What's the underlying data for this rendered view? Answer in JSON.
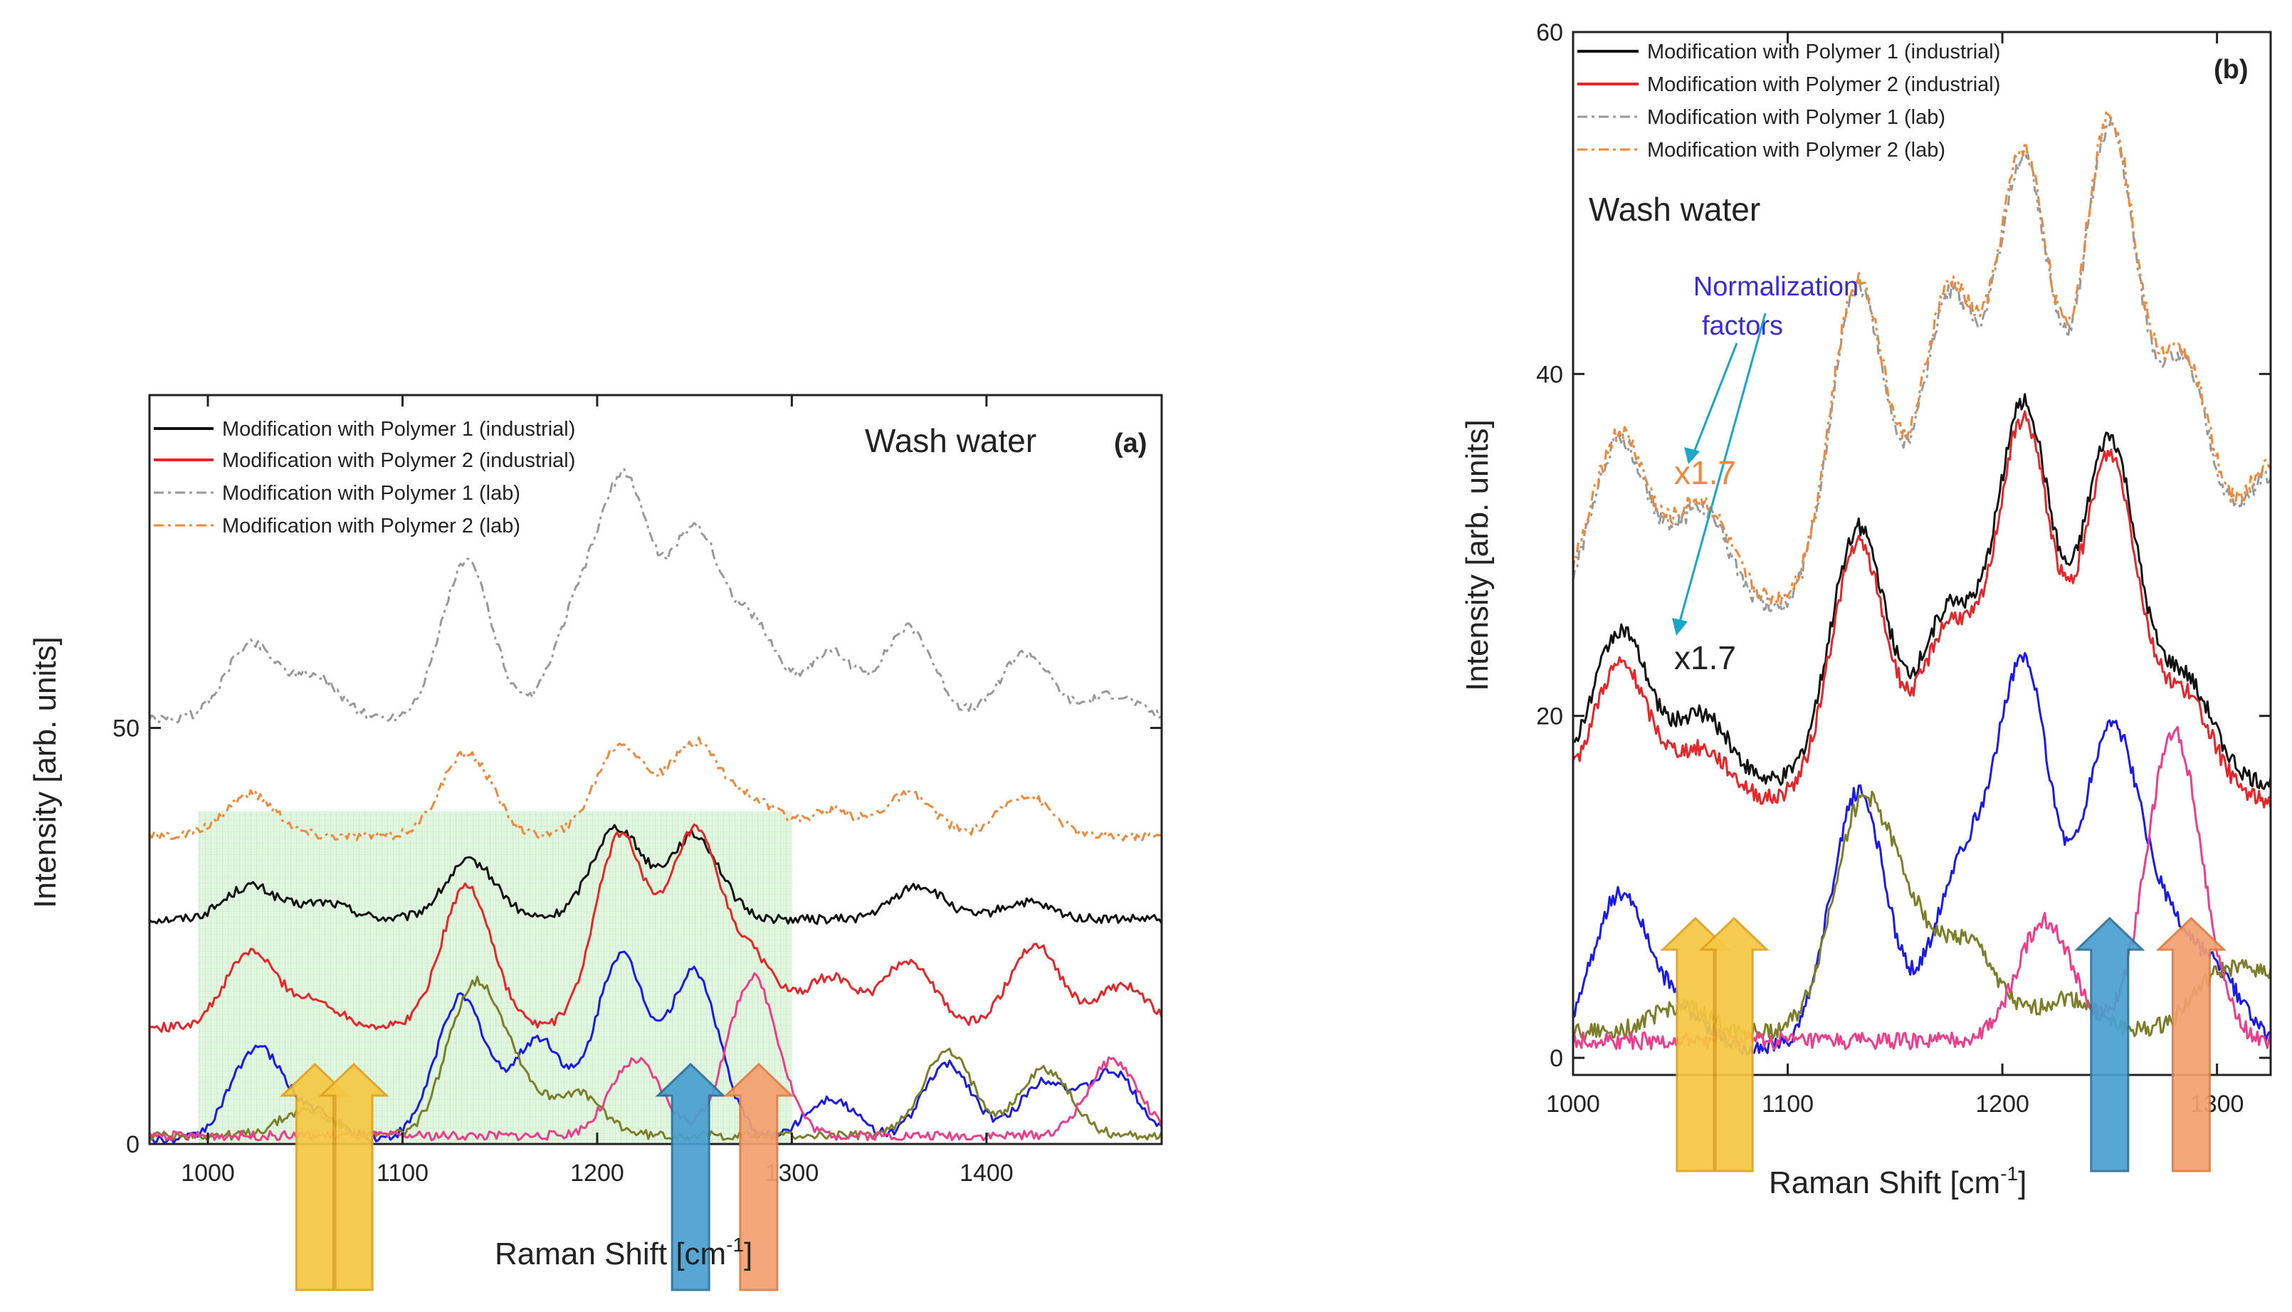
{
  "chart_data": [
    {
      "type": "line",
      "panel_label": "(a)",
      "annotation": "Wash water",
      "xlabel": "Raman Shift [cm",
      "xlabel_sup": "-1",
      "xlabel_close": "]",
      "ylabel": "Intensity [arb. units]",
      "xlim": [
        970,
        1490
      ],
      "ylim": [
        0,
        90
      ],
      "xticks": [
        1000,
        1100,
        1200,
        1300,
        1400
      ],
      "yticks": [
        0,
        50
      ],
      "highlight_region": {
        "x": [
          995,
          1300
        ],
        "y": [
          0,
          40
        ],
        "color": "#cfeecb"
      },
      "series": [
        {
          "name": "Modification with Polymer 1 (industrial)",
          "color": "#111111",
          "dash": "",
          "in_legend": true,
          "peaks": {
            "x": [
              1022,
              1060,
              1135,
              1210,
              1250,
              1365,
              1420
            ],
            "y": [
              4,
              2,
              7,
              11,
              10,
              4,
              2
            ]
          },
          "offset": 27
        },
        {
          "name": "Modification with Polymer 2 (industrial)",
          "color": "#e8262a",
          "dash": "",
          "in_legend": true,
          "peaks": {
            "x": [
              1022,
              1055,
              1133,
              1212,
              1250,
              1280,
              1320,
              1360,
              1425,
              1470
            ],
            "y": [
              9,
              3,
              17,
              23,
              23,
              8,
              6,
              8,
              10,
              5
            ]
          },
          "offset": 14
        },
        {
          "name": "Modification with Polymer 1 (lab)",
          "color": "#999999",
          "dash": "14,6,4,6",
          "in_legend": true,
          "peaks": {
            "x": [
              1022,
              1055,
              1133,
              1190,
              1215,
              1250,
              1280,
              1320,
              1360,
              1420,
              1465
            ],
            "y": [
              9,
              5,
              19,
              12,
              27,
              22,
              11,
              8,
              11,
              8,
              3
            ]
          },
          "offset": 51
        },
        {
          "name": "Modification with Polymer 2 (lab)",
          "color": "#f0883a",
          "dash": "14,6,4,6",
          "in_legend": true,
          "peaks": {
            "x": [
              1022,
              1133,
              1212,
              1250,
              1280,
              1320,
              1360,
              1420
            ],
            "y": [
              5,
              10,
              11,
              11,
              4,
              3,
              5,
              5
            ]
          },
          "offset": 37
        },
        {
          "name": "",
          "color": "#1a1aee",
          "dash": "",
          "in_legend": false,
          "peaks": {
            "x": [
              1025,
              1055,
              1130,
              1170,
              1212,
              1250,
              1320,
              1380,
              1430,
              1465
            ],
            "y": [
              11,
              3,
              17,
              12,
              22,
              20,
              5,
              9,
              7,
              8
            ]
          },
          "offset": 0.5
        },
        {
          "name": "",
          "color": "#7c7f2a",
          "dash": "",
          "in_legend": false,
          "peaks": {
            "x": [
              1050,
              1135,
              1155,
              1190,
              1380,
              1430
            ],
            "y": [
              3,
              16,
              7,
              5,
              10,
              8
            ]
          },
          "offset": 1
        },
        {
          "name": "",
          "color": "#ee3d8a",
          "dash": "",
          "in_legend": false,
          "peaks": {
            "x": [
              1220,
              1280,
              1465
            ],
            "y": [
              9,
              19,
              9
            ]
          },
          "offset": 1
        }
      ],
      "arrows": [
        {
          "x": 1055,
          "color": "#f5c842",
          "stroke": "#e0a020"
        },
        {
          "x": 1075,
          "color": "#f5c842",
          "stroke": "#e0a020"
        },
        {
          "x": 1248,
          "color": "#4a9fd0",
          "stroke": "#2b6f9a"
        },
        {
          "x": 1283,
          "color": "#f4a070",
          "stroke": "#e07a40"
        }
      ]
    },
    {
      "type": "line",
      "panel_label": "(b)",
      "annotation": "Wash water",
      "note_title": "Normalization",
      "note_title2": "factors",
      "factor_lab": "x1.7",
      "factor_ind": "x1.7",
      "xlabel": "Raman Shift [cm",
      "xlabel_sup": "-1",
      "xlabel_close": "]",
      "ylabel": "Intensity [arb. units]",
      "xlim": [
        1000,
        1325
      ],
      "ylim": [
        -1,
        60
      ],
      "xticks": [
        1000,
        1100,
        1200,
        1300
      ],
      "yticks": [
        0,
        20,
        40,
        60
      ],
      "series": [
        {
          "name": "Modification with Polymer 1 (industrial)",
          "color": "#111111",
          "dash": "",
          "in_legend": true,
          "peaks": {
            "x": [
              1022,
              1060,
              1133,
              1175,
              1210,
              1250,
              1285
            ],
            "y": [
              9,
              4,
              15,
              10,
              22,
              20,
              6
            ]
          },
          "offset": 16
        },
        {
          "name": "Modification with Polymer 2 (industrial)",
          "color": "#e8262a",
          "dash": "",
          "in_legend": true,
          "peaks": {
            "x": [
              1022,
              1060,
              1133,
              1175,
              1210,
              1250,
              1285
            ],
            "y": [
              8,
              3,
              15,
              10,
              22,
              20,
              6
            ]
          },
          "offset": 15
        },
        {
          "name": "Modification with Polymer 1 (lab)",
          "color": "#999999",
          "dash": "14,6,4,6",
          "in_legend": true,
          "peaks": {
            "x": [
              1022,
              1060,
              1133,
              1175,
              1210,
              1250,
              1285,
              1325
            ],
            "y": [
              10,
              6,
              19,
              18,
              26,
              28,
              14,
              8
            ]
          },
          "offset": 26
        },
        {
          "name": "Modification with Polymer 2 (lab)",
          "color": "#f0883a",
          "dash": "14,6,4,6",
          "in_legend": true,
          "peaks": {
            "x": [
              1022,
              1060,
              1133,
              1175,
              1210,
              1250,
              1285,
              1325
            ],
            "y": [
              10,
              6,
              19,
              18,
              26,
              28,
              14,
              8
            ]
          },
          "offset": 26.5
        },
        {
          "name": "",
          "color": "#1a1aee",
          "dash": "",
          "in_legend": false,
          "peaks": {
            "x": [
              1022,
              1050,
              1133,
              1180,
              1210,
              1250,
              1275,
              1300
            ],
            "y": [
              9,
              2,
              15,
              10,
              22,
              18,
              6,
              4
            ]
          },
          "offset": 0.5
        },
        {
          "name": "",
          "color": "#7c7f2a",
          "dash": "",
          "in_legend": false,
          "peaks": {
            "x": [
              1050,
              1133,
              1155,
              1185,
              1230,
              1300,
              1325
            ],
            "y": [
              1.5,
              12,
              6,
              5,
              2,
              3,
              3
            ]
          },
          "offset": 1.5
        },
        {
          "name": "",
          "color": "#ee3d8a",
          "dash": "",
          "in_legend": false,
          "peaks": {
            "x": [
              1220,
              1280
            ],
            "y": [
              7,
              18
            ]
          },
          "offset": 1
        }
      ],
      "arrows": [
        {
          "x": 1057,
          "color": "#f5c842",
          "stroke": "#e0a020"
        },
        {
          "x": 1075,
          "color": "#f5c842",
          "stroke": "#e0a020"
        },
        {
          "x": 1250,
          "color": "#4a9fd0",
          "stroke": "#2b6f9a"
        },
        {
          "x": 1288,
          "color": "#f4a070",
          "stroke": "#e07a40"
        }
      ]
    }
  ]
}
